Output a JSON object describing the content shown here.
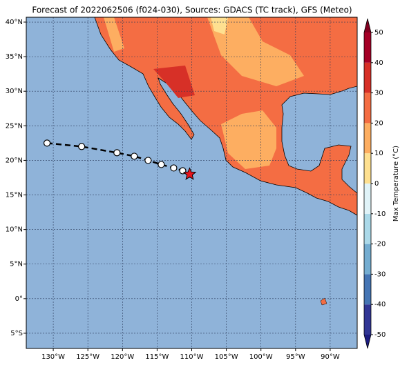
{
  "map": {
    "title": "Forecast of 2022062506 (f024-030), Sources: GDACS (TC track), GFS (Meteo)",
    "xlim": [
      -133.9,
      -86.1
    ],
    "ylim": [
      -7.2,
      40.7
    ],
    "xticks": [
      {
        "value": -130,
        "label": "130°W"
      },
      {
        "value": -125,
        "label": "125°W"
      },
      {
        "value": -120,
        "label": "120°W"
      },
      {
        "value": -115,
        "label": "115°W"
      },
      {
        "value": -110,
        "label": "110°W"
      },
      {
        "value": -105,
        "label": "105°W"
      },
      {
        "value": -100,
        "label": "100°W"
      },
      {
        "value": -95,
        "label": "95°W"
      },
      {
        "value": -90,
        "label": "90°W"
      }
    ],
    "yticks": [
      {
        "value": 40,
        "label": "40°N"
      },
      {
        "value": 35,
        "label": "35°N"
      },
      {
        "value": 30,
        "label": "30°N"
      },
      {
        "value": 25,
        "label": "25°N"
      },
      {
        "value": 20,
        "label": "20°N"
      },
      {
        "value": 15,
        "label": "15°N"
      },
      {
        "value": 10,
        "label": "10°N"
      },
      {
        "value": 5,
        "label": "5°N"
      },
      {
        "value": 0,
        "label": "0°"
      },
      {
        "value": -5,
        "label": "5°S"
      }
    ],
    "grid": true,
    "colorbar": {
      "label": "Max Temperature (°C)",
      "lim": [
        -50,
        50
      ],
      "ticks": [
        -50,
        -40,
        -30,
        -20,
        -10,
        0,
        10,
        20,
        30,
        40,
        50
      ],
      "colors": [
        "#313695",
        "#4575b4",
        "#74add1",
        "#abd9e9",
        "#e0f3f8",
        "#fee090",
        "#fdae61",
        "#f46d43",
        "#d73027",
        "#a50026"
      ],
      "under_color": "#1c1c80",
      "over_color": "#800020"
    },
    "track": {
      "lon": [
        -130.9,
        -125.9,
        -120.8,
        -118.3,
        -116.3,
        -114.4,
        -112.6,
        -111.3,
        -110.3
      ],
      "lat": [
        22.5,
        22.0,
        21.1,
        20.6,
        20.0,
        19.4,
        18.9,
        18.5,
        18.0
      ]
    }
  }
}
